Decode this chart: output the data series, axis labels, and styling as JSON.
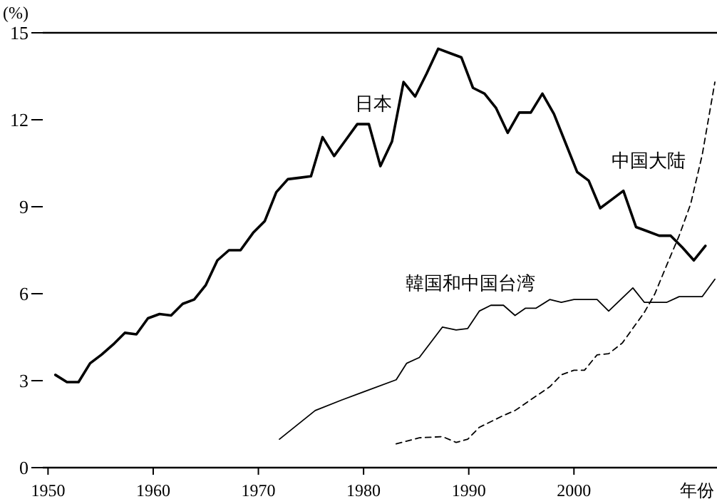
{
  "chart_data": {
    "type": "line",
    "xlabel": "年份",
    "ylabel": "(%)",
    "xlim": [
      1949.5,
      2013.6
    ],
    "xticks": [
      1950,
      1960,
      1970,
      1980,
      1990,
      2000
    ],
    "ylim": [
      0,
      15
    ],
    "yticks": [
      0,
      3,
      6,
      9,
      12,
      15
    ],
    "series": [
      {
        "name": "日本",
        "color": "#000000",
        "line_style": "solid",
        "x": [
          1950.7,
          1951.8,
          1952.9,
          1954.0,
          1955.1,
          1956.2,
          1957.3,
          1958.4,
          1959.5,
          1960.6,
          1961.7,
          1962.8,
          1963.9,
          1965.0,
          1966.1,
          1967.2,
          1968.3,
          1969.5,
          1970.6,
          1971.7,
          1972.8,
          1973.9,
          1975.0,
          1976.1,
          1977.2,
          1978.3,
          1979.4,
          1980.5,
          1981.6,
          1982.7,
          1983.8,
          1984.9,
          1986.0,
          1987.1,
          1988.2,
          1989.3,
          1990.4,
          1991.5,
          1992.6,
          1993.7,
          1994.8,
          1995.9,
          1997.0,
          1998.1,
          1999.2,
          2000.3,
          2001.4,
          2002.5,
          2003.6,
          2004.7,
          2005.9,
          2007.0,
          2008.1,
          2009.2,
          2010.3,
          2011.4,
          2012.5
        ],
        "values": [
          3.2,
          2.95,
          2.95,
          3.6,
          3.9,
          4.25,
          4.65,
          4.6,
          5.15,
          5.3,
          5.25,
          5.65,
          5.8,
          6.3,
          7.15,
          7.5,
          7.5,
          8.1,
          8.5,
          9.5,
          9.95,
          10.0,
          10.05,
          11.4,
          10.75,
          11.3,
          11.85,
          11.85,
          10.4,
          11.25,
          13.3,
          12.8,
          13.6,
          14.45,
          14.3,
          14.15,
          13.1,
          12.9,
          12.4,
          11.55,
          12.25,
          12.25,
          12.9,
          12.2,
          11.2,
          10.2,
          9.9,
          8.95,
          9.25,
          9.55,
          8.3,
          8.15,
          8.0,
          8.0,
          7.6,
          7.15,
          7.65
        ]
      },
      {
        "name": "韓国和中国台湾",
        "color": "#000000",
        "line_style": "solid",
        "x": [
          1972.0,
          1975.4,
          1977.9,
          1983.1,
          1984.1,
          1985.3,
          1987.5,
          1988.8,
          1989.9,
          1991.0,
          1992.1,
          1993.3,
          1994.4,
          1995.4,
          1996.4,
          1997.7,
          1998.8,
          2000.0,
          2002.2,
          2003.3,
          2005.6,
          2006.7,
          2008.8,
          2010.0,
          2012.2,
          2013.4
        ],
        "values": [
          0.98,
          1.97,
          2.33,
          3.03,
          3.6,
          3.8,
          4.85,
          4.75,
          4.8,
          5.4,
          5.6,
          5.6,
          5.25,
          5.5,
          5.5,
          5.8,
          5.7,
          5.8,
          5.8,
          5.4,
          6.2,
          5.7,
          5.7,
          5.9,
          5.9,
          6.5
        ]
      },
      {
        "name": "中国大陆",
        "color": "#000000",
        "line_style": "dashed",
        "x": [
          1983.1,
          1985.3,
          1987.5,
          1988.8,
          1989.9,
          1991.0,
          1993.3,
          1994.4,
          1997.7,
          1998.8,
          2000.0,
          2001.0,
          2002.2,
          2003.3,
          2004.6,
          2006.7,
          2007.7,
          2008.8,
          2010.0,
          2011.1,
          2012.2,
          2013.4
        ],
        "values": [
          0.82,
          1.03,
          1.07,
          0.87,
          0.98,
          1.39,
          1.8,
          1.97,
          2.79,
          3.2,
          3.36,
          3.36,
          3.89,
          3.93,
          4.3,
          5.36,
          6.0,
          6.97,
          8.0,
          9.1,
          10.8,
          13.3
        ]
      }
    ]
  }
}
